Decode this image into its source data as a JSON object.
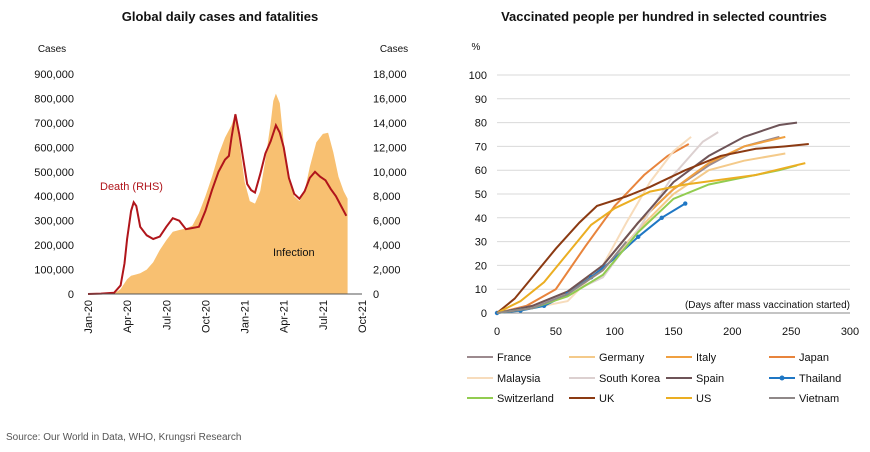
{
  "source": "Source: Our World in Data, WHO, Krungsri Research",
  "chart_data": [
    {
      "type": "area",
      "title": "Global daily cases and fatalities",
      "y_left_label": "Cases",
      "y_right_label": "Cases",
      "x_ticks": [
        "Jan-20",
        "Apr-20",
        "Jul-20",
        "Oct-20",
        "Jan-21",
        "Apr-21",
        "Jul-21",
        "Oct-21"
      ],
      "x_range": [
        0,
        21
      ],
      "y_left": {
        "ylim": [
          0,
          900000
        ],
        "ticks": [
          "0",
          "100,000",
          "200,000",
          "300,000",
          "400,000",
          "500,000",
          "600,000",
          "700,000",
          "800,000",
          "900,000"
        ]
      },
      "y_right": {
        "ylim": [
          0,
          18000
        ],
        "ticks": [
          "0",
          "2,000",
          "4,000",
          "6,000",
          "8,000",
          "10,000",
          "12,000",
          "14,000",
          "16,000",
          "18,000"
        ]
      },
      "series": [
        {
          "name": "Infection",
          "axis": "left",
          "color": "#F8C071",
          "points": [
            [
              0,
              0
            ],
            [
              1,
              500
            ],
            [
              2,
              2000
            ],
            [
              2.5,
              20000
            ],
            [
              3,
              60000
            ],
            [
              3.3,
              75000
            ],
            [
              3.7,
              80000
            ],
            [
              4,
              85000
            ],
            [
              4.5,
              100000
            ],
            [
              5,
              130000
            ],
            [
              5.5,
              180000
            ],
            [
              6,
              220000
            ],
            [
              6.5,
              255000
            ],
            [
              7,
              262000
            ],
            [
              7.5,
              268000
            ],
            [
              8,
              280000
            ],
            [
              8.5,
              330000
            ],
            [
              9,
              400000
            ],
            [
              9.5,
              480000
            ],
            [
              10,
              570000
            ],
            [
              10.5,
              640000
            ],
            [
              11,
              690000
            ],
            [
              11.3,
              740000
            ],
            [
              11.7,
              580000
            ],
            [
              12,
              460000
            ],
            [
              12.4,
              380000
            ],
            [
              12.8,
              370000
            ],
            [
              13.2,
              420000
            ],
            [
              13.6,
              550000
            ],
            [
              14,
              700000
            ],
            [
              14.2,
              790000
            ],
            [
              14.4,
              820000
            ],
            [
              14.7,
              780000
            ],
            [
              15,
              620000
            ],
            [
              15.4,
              480000
            ],
            [
              15.8,
              400000
            ],
            [
              16.2,
              380000
            ],
            [
              16.6,
              420000
            ],
            [
              17,
              520000
            ],
            [
              17.5,
              620000
            ],
            [
              18,
              655000
            ],
            [
              18.4,
              660000
            ],
            [
              18.8,
              580000
            ],
            [
              19.2,
              480000
            ],
            [
              19.6,
              420000
            ],
            [
              19.9,
              390000
            ]
          ]
        },
        {
          "name": "Death (RHS)",
          "axis": "right",
          "color": "#B0151B",
          "points": [
            [
              0,
              0
            ],
            [
              1,
              30
            ],
            [
              2,
              100
            ],
            [
              2.5,
              700
            ],
            [
              2.8,
              2500
            ],
            [
              3,
              4500
            ],
            [
              3.3,
              6800
            ],
            [
              3.5,
              7500
            ],
            [
              3.7,
              7200
            ],
            [
              4,
              5500
            ],
            [
              4.5,
              4800
            ],
            [
              5,
              4500
            ],
            [
              5.5,
              4700
            ],
            [
              6,
              5500
            ],
            [
              6.5,
              6200
            ],
            [
              7,
              6000
            ],
            [
              7.5,
              5300
            ],
            [
              8,
              5400
            ],
            [
              8.5,
              5500
            ],
            [
              9,
              6800
            ],
            [
              9.5,
              8500
            ],
            [
              10,
              10000
            ],
            [
              10.5,
              11000
            ],
            [
              10.8,
              11300
            ],
            [
              11,
              12800
            ],
            [
              11.3,
              14700
            ],
            [
              11.6,
              13000
            ],
            [
              11.9,
              11000
            ],
            [
              12.2,
              9000
            ],
            [
              12.5,
              8500
            ],
            [
              12.8,
              8300
            ],
            [
              13.2,
              9800
            ],
            [
              13.6,
              11500
            ],
            [
              14,
              12500
            ],
            [
              14.4,
              13800
            ],
            [
              14.7,
              13200
            ],
            [
              15,
              12000
            ],
            [
              15.4,
              9500
            ],
            [
              15.8,
              8200
            ],
            [
              16.2,
              7800
            ],
            [
              16.6,
              8400
            ],
            [
              17,
              9500
            ],
            [
              17.4,
              10000
            ],
            [
              17.8,
              9600
            ],
            [
              18.2,
              9300
            ],
            [
              18.6,
              8600
            ],
            [
              19,
              8000
            ],
            [
              19.4,
              7200
            ],
            [
              19.8,
              6400
            ]
          ]
        }
      ],
      "annotations": [
        "Death (RHS)",
        "Infection"
      ]
    },
    {
      "type": "line",
      "title": "Vaccinated people per hundred in selected countries",
      "ylabel": "%",
      "xlabel": "(Days after mass vaccination started)",
      "xlim": [
        0,
        300
      ],
      "ylim": [
        0,
        100
      ],
      "x_ticks": [
        "0",
        "50",
        "100",
        "150",
        "200",
        "250",
        "300"
      ],
      "y_ticks": [
        "0",
        "10",
        "20",
        "30",
        "40",
        "50",
        "60",
        "70",
        "80",
        "90",
        "100"
      ],
      "legend_position": "bottom",
      "series": [
        {
          "name": "France",
          "color": "#9C8A8E",
          "points": [
            [
              0,
              0
            ],
            [
              30,
              2
            ],
            [
              60,
              8
            ],
            [
              90,
              20
            ],
            [
              120,
              38
            ],
            [
              150,
              52
            ],
            [
              180,
              62
            ],
            [
              210,
              70
            ],
            [
              240,
              74
            ]
          ]
        },
        {
          "name": "Germany",
          "color": "#F4CA8A",
          "points": [
            [
              0,
              0
            ],
            [
              30,
              3
            ],
            [
              60,
              8
            ],
            [
              90,
              18
            ],
            [
              120,
              35
            ],
            [
              150,
              50
            ],
            [
              180,
              60
            ],
            [
              210,
              64
            ],
            [
              245,
              67
            ]
          ]
        },
        {
          "name": "Italy",
          "color": "#F0A040",
          "points": [
            [
              0,
              0
            ],
            [
              30,
              3
            ],
            [
              60,
              9
            ],
            [
              90,
              20
            ],
            [
              120,
              38
            ],
            [
              150,
              52
            ],
            [
              180,
              63
            ],
            [
              210,
              70
            ],
            [
              245,
              74
            ]
          ]
        },
        {
          "name": "Japan",
          "color": "#E8843C",
          "points": [
            [
              0,
              0
            ],
            [
              25,
              3
            ],
            [
              50,
              10
            ],
            [
              75,
              28
            ],
            [
              100,
              45
            ],
            [
              125,
              58
            ],
            [
              145,
              66
            ],
            [
              163,
              71
            ]
          ]
        },
        {
          "name": "Malaysia",
          "color": "#F7DCBC",
          "points": [
            [
              0,
              0
            ],
            [
              30,
              2
            ],
            [
              60,
              5
            ],
            [
              90,
              20
            ],
            [
              110,
              38
            ],
            [
              130,
              55
            ],
            [
              150,
              68
            ],
            [
              165,
              74
            ]
          ]
        },
        {
          "name": "South Korea",
          "color": "#DCD0D0",
          "points": [
            [
              0,
              0
            ],
            [
              30,
              3
            ],
            [
              60,
              8
            ],
            [
              90,
              15
            ],
            [
              120,
              35
            ],
            [
              150,
              58
            ],
            [
              175,
              72
            ],
            [
              188,
              76
            ]
          ]
        },
        {
          "name": "Spain",
          "color": "#6E5458",
          "points": [
            [
              0,
              0
            ],
            [
              30,
              3
            ],
            [
              60,
              9
            ],
            [
              90,
              20
            ],
            [
              120,
              38
            ],
            [
              150,
              55
            ],
            [
              180,
              66
            ],
            [
              210,
              74
            ],
            [
              240,
              79
            ],
            [
              255,
              80
            ]
          ]
        },
        {
          "name": "Thailand",
          "color": "#1F77C4",
          "marker": true,
          "points": [
            [
              0,
              0
            ],
            [
              20,
              1
            ],
            [
              40,
              3
            ],
            [
              60,
              8
            ],
            [
              80,
              15
            ],
            [
              100,
              23
            ],
            [
              120,
              32
            ],
            [
              140,
              40
            ],
            [
              160,
              46
            ]
          ]
        },
        {
          "name": "Switzerland",
          "color": "#92CC50",
          "points": [
            [
              0,
              0
            ],
            [
              30,
              2
            ],
            [
              60,
              7
            ],
            [
              90,
              16
            ],
            [
              120,
              34
            ],
            [
              150,
              48
            ],
            [
              180,
              54
            ],
            [
              210,
              57
            ],
            [
              240,
              60
            ],
            [
              255,
              62
            ]
          ]
        },
        {
          "name": "UK",
          "color": "#8B3A12",
          "points": [
            [
              0,
              0
            ],
            [
              15,
              6
            ],
            [
              30,
              15
            ],
            [
              50,
              27
            ],
            [
              70,
              38
            ],
            [
              85,
              45
            ],
            [
              110,
              49
            ],
            [
              130,
              53
            ],
            [
              160,
              60
            ],
            [
              190,
              66
            ],
            [
              220,
              69
            ],
            [
              245,
              70
            ],
            [
              265,
              71
            ]
          ]
        },
        {
          "name": "US",
          "color": "#EBAE22",
          "points": [
            [
              0,
              0
            ],
            [
              20,
              5
            ],
            [
              40,
              13
            ],
            [
              60,
              25
            ],
            [
              80,
              37
            ],
            [
              100,
              44
            ],
            [
              130,
              51
            ],
            [
              160,
              54
            ],
            [
              190,
              56
            ],
            [
              220,
              58
            ],
            [
              245,
              61
            ],
            [
              262,
              63
            ]
          ]
        },
        {
          "name": "Vietnam",
          "color": "#8F8888",
          "points": [
            [
              0,
              0
            ],
            [
              30,
              2
            ],
            [
              60,
              8
            ],
            [
              90,
              18
            ],
            [
              110,
              30
            ]
          ]
        }
      ]
    }
  ]
}
